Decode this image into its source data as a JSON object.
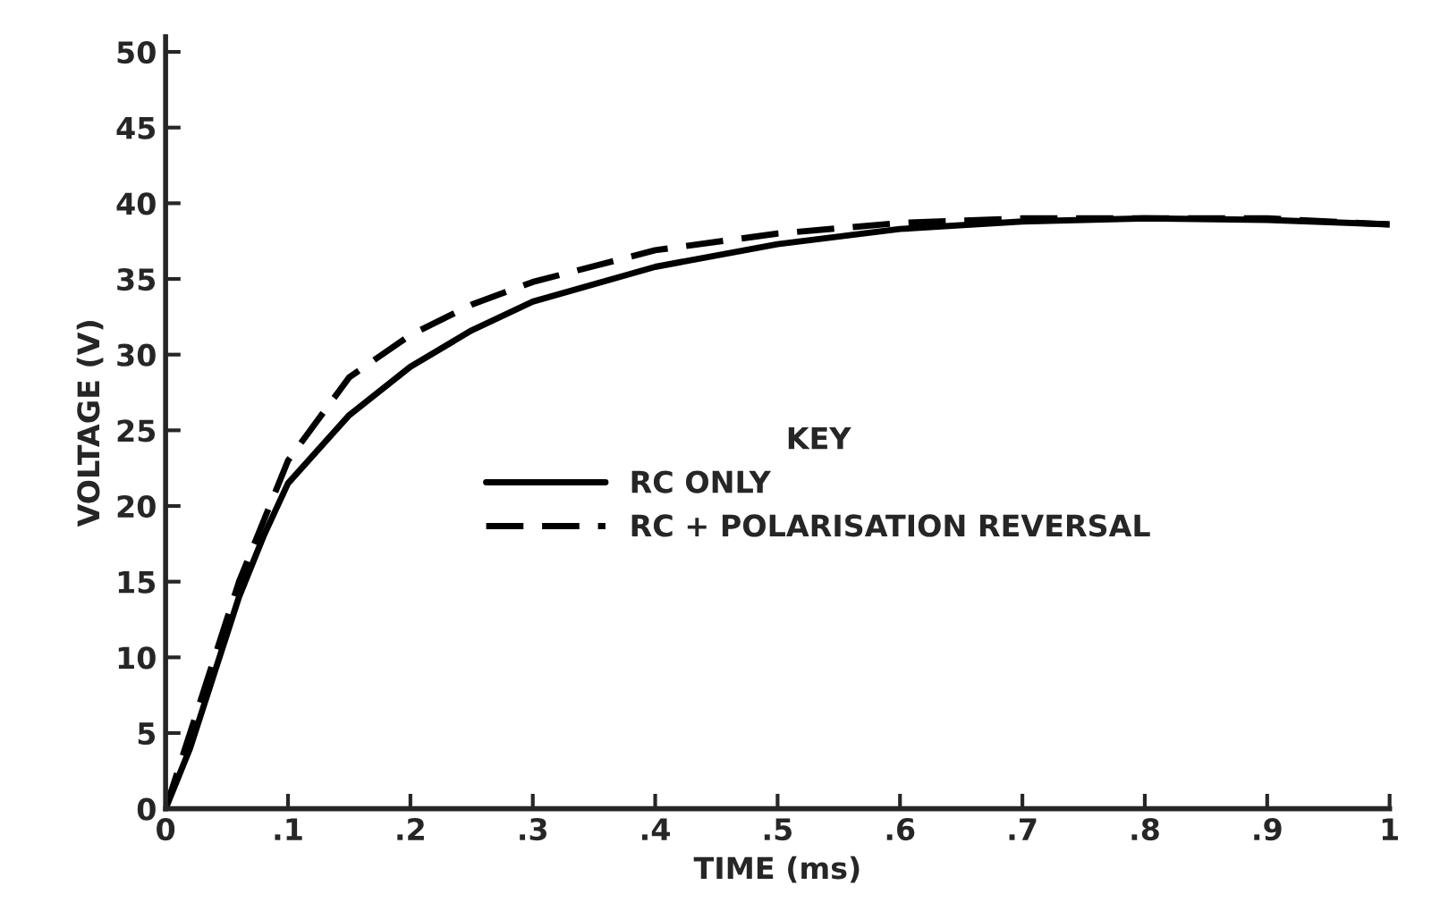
{
  "chart_data": {
    "type": "line",
    "xlabel": "TIME (ms)",
    "ylabel": "VOLTAGE (V)",
    "legend_title": "KEY",
    "legend": "right",
    "series": [
      {
        "name": "RC ONLY",
        "color": "#000000",
        "line_style": "solid",
        "x": [
          0,
          0.02,
          0.04,
          0.06,
          0.08,
          0.1,
          0.15,
          0.2,
          0.25,
          0.3,
          0.4,
          0.5,
          0.6,
          0.7,
          0.8,
          0.9,
          1
        ],
        "values": [
          0,
          4,
          9,
          14,
          18,
          21.5,
          26,
          29.2,
          31.6,
          33.5,
          35.8,
          37.3,
          38.3,
          38.8,
          39,
          38.9,
          38.6
        ]
      },
      {
        "name": "RC + POLARISATION REVERSAL",
        "color": "#000000",
        "line_style": "dashed",
        "x": [
          0,
          0.02,
          0.04,
          0.06,
          0.08,
          0.1,
          0.15,
          0.2,
          0.25,
          0.3,
          0.4,
          0.5,
          0.6,
          0.7,
          0.8,
          0.9,
          1
        ],
        "values": [
          0,
          5,
          10,
          15,
          19,
          23,
          28.5,
          31.3,
          33.3,
          34.8,
          36.9,
          38,
          38.7,
          39,
          39,
          39,
          38.6
        ]
      }
    ],
    "xlim": [
      0,
      1
    ],
    "ylim": [
      0,
      51
    ],
    "xticks": [
      0,
      {
        "value": 0.1,
        "label": ".1"
      },
      {
        "value": 0.2,
        "label": ".2"
      },
      {
        "value": 0.3,
        "label": ".3"
      },
      {
        "value": 0.4,
        "label": ".4"
      },
      {
        "value": 0.5,
        "label": ".5"
      },
      {
        "value": 0.6,
        "label": ".6"
      },
      {
        "value": 0.7,
        "label": ".7"
      },
      {
        "value": 0.8,
        "label": ".8"
      },
      {
        "value": 0.9,
        "label": ".9"
      },
      1
    ],
    "yticks": [
      0,
      5,
      10,
      15,
      20,
      25,
      30,
      35,
      40,
      45,
      50
    ],
    "grid": false
  }
}
